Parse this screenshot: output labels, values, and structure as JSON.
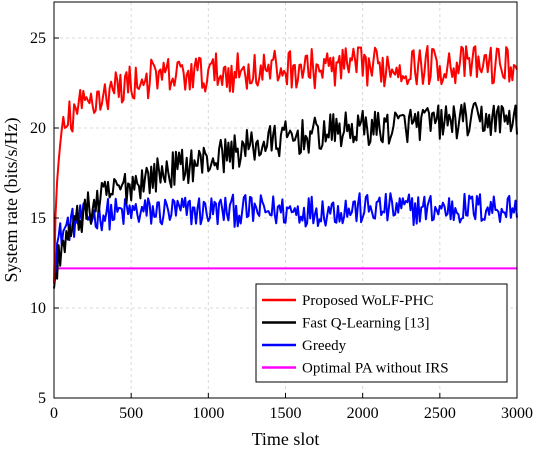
{
  "chart_data": {
    "type": "line",
    "title": "",
    "xlabel": "Time slot",
    "ylabel": "System rate (bits/s/Hz)",
    "xlim": [
      0,
      3000
    ],
    "ylim": [
      5,
      27
    ],
    "xticks": [
      0,
      500,
      1000,
      1500,
      2000,
      2500,
      3000
    ],
    "yticks": [
      5,
      10,
      15,
      20,
      25
    ],
    "xtick_labels": [
      "0",
      "500",
      "1000",
      "1500",
      "2000",
      "2500",
      "3000"
    ],
    "ytick_labels": [
      "5",
      "10",
      "15",
      "20",
      "25"
    ],
    "grid": true,
    "legend_position": "bottom-right",
    "series": [
      {
        "name": "Proposed WoLF-PHC",
        "color": "#ff0000",
        "x": [
          0,
          20,
          50,
          100,
          150,
          200,
          250,
          300,
          400,
          500,
          600,
          700,
          800,
          900,
          1000,
          1100,
          1200,
          1300,
          1400,
          1500,
          1600,
          1700,
          1800,
          1900,
          2000,
          2100,
          2200,
          2300,
          2400,
          2500,
          2600,
          2700,
          2800,
          2900,
          3000
        ],
        "values": [
          10.8,
          17.5,
          19.5,
          20.5,
          21.0,
          21.3,
          21.6,
          21.8,
          22.2,
          22.5,
          22.7,
          22.8,
          22.9,
          23.0,
          23.0,
          23.1,
          23.1,
          23.2,
          23.2,
          23.3,
          23.3,
          23.3,
          23.3,
          23.4,
          23.4,
          23.4,
          23.4,
          23.4,
          23.5,
          23.5,
          23.5,
          23.5,
          23.5,
          23.5,
          23.5
        ],
        "noise": 1.1
      },
      {
        "name": "Fast Q-Learning [13]",
        "color": "#000000",
        "x": [
          0,
          20,
          50,
          100,
          150,
          200,
          300,
          400,
          500,
          600,
          700,
          800,
          900,
          1000,
          1100,
          1200,
          1300,
          1400,
          1500,
          1600,
          1700,
          1800,
          1900,
          2000,
          2100,
          2200,
          2300,
          2400,
          2500,
          2600,
          2700,
          2800,
          2900,
          3000
        ],
        "values": [
          10.3,
          12.5,
          13.5,
          14.0,
          14.8,
          15.3,
          16.0,
          16.5,
          16.9,
          17.2,
          17.5,
          17.8,
          18.0,
          18.2,
          18.5,
          18.8,
          19.0,
          19.2,
          19.4,
          19.5,
          19.6,
          19.8,
          19.9,
          20.0,
          20.0,
          20.1,
          20.2,
          20.3,
          20.3,
          20.4,
          20.4,
          20.5,
          20.5,
          20.6
        ],
        "noise": 1.0
      },
      {
        "name": "Greedy",
        "color": "#0000ff",
        "x": [
          0,
          20,
          50,
          100,
          200,
          300,
          500,
          1000,
          1500,
          2000,
          2500,
          3000
        ],
        "values": [
          12.2,
          13.5,
          14.2,
          14.6,
          15.0,
          15.2,
          15.3,
          15.4,
          15.4,
          15.5,
          15.5,
          15.6
        ],
        "noise": 0.9
      },
      {
        "name": "Optimal PA without IRS",
        "color": "#ff00ff",
        "x": [
          0,
          3000
        ],
        "values": [
          12.2,
          12.2
        ],
        "noise": 0
      }
    ]
  }
}
